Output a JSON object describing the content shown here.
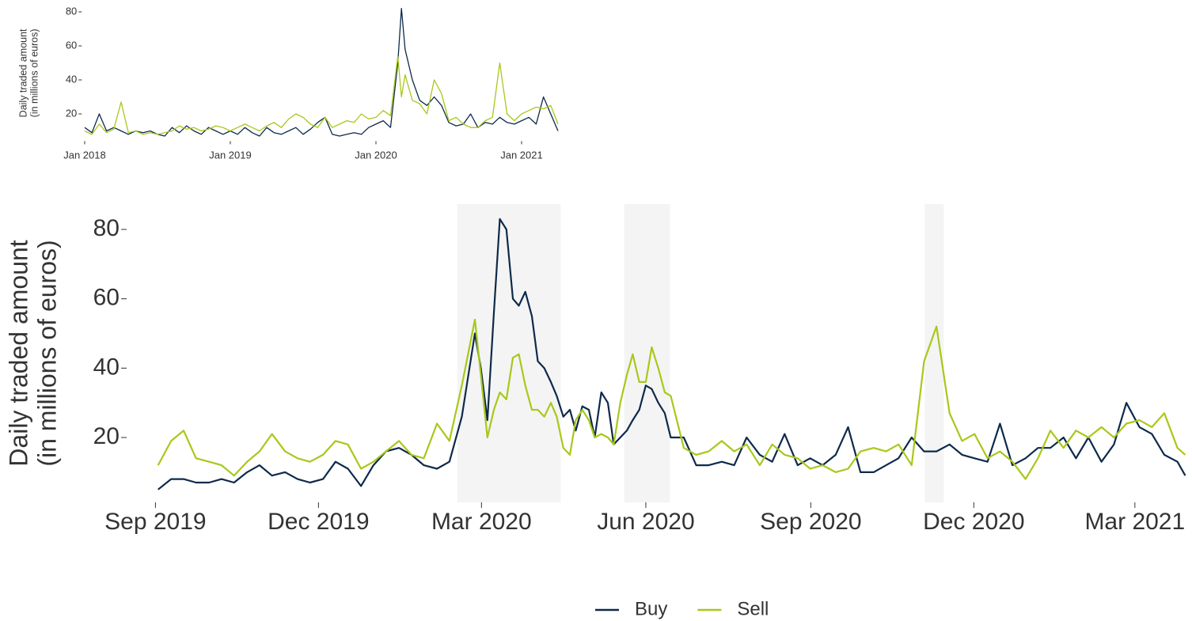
{
  "chart_data": [
    {
      "type": "line",
      "ylabel": [
        "Daily traded amount",
        "(in millions of euros)"
      ],
      "x": [
        2018.0,
        2018.05,
        2018.1,
        2018.15,
        2018.2,
        2018.25,
        2018.3,
        2018.35,
        2018.4,
        2018.45,
        2018.5,
        2018.55,
        2018.6,
        2018.65,
        2018.7,
        2018.75,
        2018.8,
        2018.85,
        2018.9,
        2018.95,
        2019.0,
        2019.05,
        2019.1,
        2019.15,
        2019.2,
        2019.25,
        2019.3,
        2019.35,
        2019.4,
        2019.45,
        2019.5,
        2019.55,
        2019.6,
        2019.65,
        2019.7,
        2019.75,
        2019.8,
        2019.85,
        2019.9,
        2019.95,
        2020.0,
        2020.05,
        2020.1,
        2020.15,
        2020.175,
        2020.2,
        2020.25,
        2020.3,
        2020.35,
        2020.4,
        2020.45,
        2020.5,
        2020.55,
        2020.6,
        2020.65,
        2020.7,
        2020.75,
        2020.8,
        2020.85,
        2020.9,
        2020.95,
        2021.0,
        2021.05,
        2021.1,
        2021.15,
        2021.2,
        2021.25
      ],
      "series": [
        {
          "name": "Buy",
          "color": "#0d2a4a",
          "values": [
            12,
            9,
            20,
            10,
            12,
            10,
            8,
            10,
            9,
            10,
            8,
            7,
            12,
            9,
            13,
            10,
            8,
            12,
            10,
            8,
            10,
            8,
            12,
            9,
            7,
            12,
            9,
            8,
            10,
            12,
            8,
            11,
            15,
            18,
            8,
            7,
            8,
            9,
            8,
            12,
            14,
            16,
            12,
            50,
            82,
            58,
            40,
            28,
            25,
            30,
            25,
            15,
            13,
            14,
            20,
            12,
            15,
            14,
            18,
            15,
            14,
            16,
            18,
            14,
            30,
            20,
            10
          ]
        },
        {
          "name": "Sell",
          "color": "#a8c81a",
          "values": [
            10,
            8,
            14,
            9,
            11,
            27,
            9,
            10,
            8,
            9,
            8,
            9,
            10,
            13,
            11,
            12,
            10,
            11,
            13,
            12,
            10,
            12,
            14,
            12,
            10,
            13,
            15,
            12,
            17,
            20,
            18,
            14,
            12,
            18,
            12,
            14,
            16,
            15,
            20,
            17,
            18,
            22,
            19,
            54,
            30,
            43,
            28,
            26,
            20,
            40,
            32,
            16,
            18,
            14,
            12,
            12,
            16,
            18,
            50,
            20,
            16,
            20,
            22,
            24,
            23,
            25,
            14
          ]
        }
      ],
      "xlim": [
        2017.98,
        2021.28
      ],
      "xticks": [
        {
          "value": 2018.0,
          "label": "Jan 2018"
        },
        {
          "value": 2019.0,
          "label": "Jan 2019"
        },
        {
          "value": 2020.0,
          "label": "Jan 2020"
        },
        {
          "value": 2021.0,
          "label": "Jan 2021"
        }
      ],
      "ylim": [
        4,
        84
      ],
      "yticks": [
        20,
        40,
        60,
        80
      ],
      "grid": false
    },
    {
      "type": "line",
      "ylabel": [
        "Daily traded amount",
        "(in millions of euros)"
      ],
      "shaded": [
        [
          2020.127,
          2020.285
        ],
        [
          2020.382,
          2020.452
        ],
        [
          2020.841,
          2020.87
        ]
      ],
      "x": [
        2019.67,
        2019.69,
        2019.709,
        2019.728,
        2019.748,
        2019.767,
        2019.786,
        2019.806,
        2019.825,
        2019.844,
        2019.864,
        2019.883,
        2019.902,
        2019.922,
        2019.941,
        2019.96,
        2019.98,
        2019.999,
        2020.018,
        2020.038,
        2020.057,
        2020.076,
        2020.096,
        2020.115,
        2020.134,
        2020.154,
        2020.163,
        2020.173,
        2020.183,
        2020.192,
        2020.202,
        2020.212,
        2020.221,
        2020.231,
        2020.241,
        2020.25,
        2020.26,
        2020.27,
        2020.279,
        2020.289,
        2020.299,
        2020.308,
        2020.318,
        2020.328,
        2020.337,
        2020.347,
        2020.357,
        2020.366,
        2020.376,
        2020.386,
        2020.395,
        2020.405,
        2020.415,
        2020.424,
        2020.434,
        2020.444,
        2020.453,
        2020.473,
        2020.492,
        2020.511,
        2020.531,
        2020.55,
        2020.569,
        2020.589,
        2020.608,
        2020.627,
        2020.647,
        2020.666,
        2020.685,
        2020.705,
        2020.724,
        2020.743,
        2020.763,
        2020.782,
        2020.801,
        2020.821,
        2020.84,
        2020.859,
        2020.879,
        2020.898,
        2020.917,
        2020.937,
        2020.956,
        2020.975,
        2020.995,
        2021.014,
        2021.033,
        2021.053,
        2021.072,
        2021.091,
        2021.111,
        2021.13,
        2021.149,
        2021.169,
        2021.188,
        2021.207,
        2021.227,
        2021.239
      ],
      "series": [
        {
          "name": "Buy",
          "color": "#0d2a4a",
          "values": [
            5,
            8,
            8,
            7,
            7,
            8,
            7,
            10,
            12,
            9,
            10,
            8,
            7,
            8,
            13,
            11,
            6,
            12,
            16,
            17,
            15,
            12,
            11,
            13,
            26,
            50,
            40,
            25,
            56,
            83,
            80,
            60,
            58,
            62,
            55,
            42,
            40,
            36,
            32,
            26,
            28,
            22,
            29,
            28,
            20,
            33,
            30,
            18,
            20,
            22,
            25,
            28,
            35,
            34,
            30,
            27,
            20,
            20,
            12,
            12,
            13,
            12,
            20,
            15,
            13,
            21,
            12,
            14,
            12,
            15,
            23,
            10,
            10,
            12,
            14,
            20,
            16,
            16,
            18,
            15,
            14,
            13,
            24,
            12,
            14,
            17,
            17,
            20,
            14,
            20,
            13,
            18,
            30,
            23,
            21,
            15,
            13,
            9
          ]
        },
        {
          "name": "Sell",
          "color": "#a8c81a",
          "values": [
            12,
            19,
            22,
            14,
            13,
            12,
            9,
            13,
            16,
            21,
            16,
            14,
            13,
            15,
            19,
            18,
            11,
            13,
            16,
            19,
            15,
            14,
            24,
            19,
            35,
            54,
            38,
            20,
            28,
            33,
            31,
            43,
            44,
            35,
            28,
            28,
            26,
            30,
            26,
            17,
            15,
            25,
            28,
            25,
            20,
            21,
            20,
            18,
            30,
            38,
            44,
            36,
            36,
            46,
            40,
            33,
            32,
            17,
            15,
            16,
            19,
            16,
            18,
            12,
            18,
            15,
            14,
            11,
            12,
            10,
            11,
            16,
            17,
            16,
            18,
            12,
            42,
            52,
            27,
            19,
            21,
            14,
            16,
            13,
            8,
            14,
            22,
            17,
            22,
            20,
            23,
            20,
            24,
            25,
            23,
            27,
            17,
            15
          ]
        }
      ],
      "xlim": [
        2019.622,
        2021.242
      ],
      "xticks": [
        {
          "value": 2019.666,
          "label": "Sep 2019"
        },
        {
          "value": 2019.915,
          "label": "Dec 2019"
        },
        {
          "value": 2020.164,
          "label": "Mar 2020"
        },
        {
          "value": 2020.415,
          "label": "Jun 2020"
        },
        {
          "value": 2020.667,
          "label": "Sep 2020"
        },
        {
          "value": 2020.916,
          "label": "Dec 2020"
        },
        {
          "value": 2021.162,
          "label": "Mar 2021"
        }
      ],
      "ylim": [
        1.3,
        87.3
      ],
      "yticks": [
        20,
        40,
        60,
        80
      ],
      "grid": false,
      "legend": "bottom"
    }
  ]
}
